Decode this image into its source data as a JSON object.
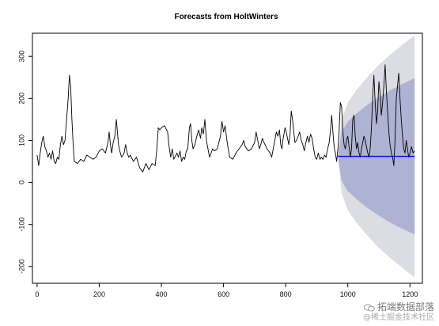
{
  "chart_data": {
    "type": "line",
    "title": "Forecasts from HoltWinters",
    "xlabel": "",
    "ylabel": "",
    "xlim": [
      -15,
      1240
    ],
    "ylim": [
      -240,
      355
    ],
    "x_ticks": [
      0,
      200,
      400,
      600,
      800,
      1000,
      1200
    ],
    "y_ticks": [
      -200,
      -100,
      0,
      100,
      200,
      300
    ],
    "grid": false,
    "legend": "none",
    "series": [
      {
        "role": "observed",
        "color": "#000000",
        "points": [
          [
            0,
            65
          ],
          [
            5,
            40
          ],
          [
            10,
            70
          ],
          [
            15,
            95
          ],
          [
            20,
            110
          ],
          [
            25,
            85
          ],
          [
            30,
            75
          ],
          [
            35,
            60
          ],
          [
            40,
            70
          ],
          [
            45,
            55
          ],
          [
            50,
            75
          ],
          [
            55,
            50
          ],
          [
            60,
            45
          ],
          [
            65,
            60
          ],
          [
            70,
            55
          ],
          [
            75,
            90
          ],
          [
            80,
            110
          ],
          [
            85,
            90
          ],
          [
            90,
            100
          ],
          [
            95,
            150
          ],
          [
            100,
            200
          ],
          [
            104,
            255
          ],
          [
            108,
            230
          ],
          [
            112,
            150
          ],
          [
            116,
            90
          ],
          [
            120,
            50
          ],
          [
            130,
            45
          ],
          [
            140,
            55
          ],
          [
            150,
            50
          ],
          [
            160,
            65
          ],
          [
            170,
            60
          ],
          [
            180,
            55
          ],
          [
            190,
            60
          ],
          [
            200,
            75
          ],
          [
            210,
            80
          ],
          [
            220,
            70
          ],
          [
            228,
            95
          ],
          [
            232,
            120
          ],
          [
            236,
            90
          ],
          [
            240,
            70
          ],
          [
            245,
            95
          ],
          [
            250,
            110
          ],
          [
            255,
            150
          ],
          [
            258,
            125
          ],
          [
            262,
            90
          ],
          [
            266,
            75
          ],
          [
            272,
            60
          ],
          [
            280,
            70
          ],
          [
            285,
            90
          ],
          [
            290,
            70
          ],
          [
            295,
            60
          ],
          [
            300,
            65
          ],
          [
            310,
            50
          ],
          [
            320,
            60
          ],
          [
            330,
            35
          ],
          [
            340,
            25
          ],
          [
            350,
            45
          ],
          [
            360,
            30
          ],
          [
            370,
            45
          ],
          [
            380,
            40
          ],
          [
            385,
            75
          ],
          [
            390,
            130
          ],
          [
            395,
            125
          ],
          [
            400,
            130
          ],
          [
            410,
            135
          ],
          [
            420,
            120
          ],
          [
            425,
            85
          ],
          [
            430,
            60
          ],
          [
            435,
            80
          ],
          [
            440,
            55
          ],
          [
            450,
            70
          ],
          [
            455,
            60
          ],
          [
            460,
            75
          ],
          [
            465,
            50
          ],
          [
            470,
            60
          ],
          [
            475,
            55
          ],
          [
            480,
            75
          ],
          [
            485,
            80
          ],
          [
            490,
            130
          ],
          [
            494,
            140
          ],
          [
            498,
            100
          ],
          [
            502,
            80
          ],
          [
            508,
            90
          ],
          [
            514,
            110
          ],
          [
            520,
            125
          ],
          [
            526,
            105
          ],
          [
            530,
            130
          ],
          [
            535,
            115
          ],
          [
            540,
            150
          ],
          [
            545,
            100
          ],
          [
            550,
            80
          ],
          [
            555,
            60
          ],
          [
            560,
            70
          ],
          [
            565,
            80
          ],
          [
            570,
            75
          ],
          [
            580,
            80
          ],
          [
            590,
            110
          ],
          [
            595,
            145
          ],
          [
            600,
            120
          ],
          [
            605,
            135
          ],
          [
            610,
            105
          ],
          [
            615,
            80
          ],
          [
            620,
            60
          ],
          [
            630,
            55
          ],
          [
            640,
            70
          ],
          [
            650,
            80
          ],
          [
            660,
            90
          ],
          [
            665,
            100
          ],
          [
            670,
            85
          ],
          [
            680,
            75
          ],
          [
            690,
            80
          ],
          [
            700,
            95
          ],
          [
            705,
            120
          ],
          [
            710,
            100
          ],
          [
            715,
            80
          ],
          [
            720,
            90
          ],
          [
            725,
            105
          ],
          [
            730,
            95
          ],
          [
            740,
            80
          ],
          [
            750,
            70
          ],
          [
            755,
            60
          ],
          [
            760,
            80
          ],
          [
            765,
            100
          ],
          [
            770,
            120
          ],
          [
            775,
            110
          ],
          [
            780,
            125
          ],
          [
            784,
            90
          ],
          [
            788,
            80
          ],
          [
            792,
            105
          ],
          [
            798,
            130
          ],
          [
            802,
            120
          ],
          [
            806,
            105
          ],
          [
            810,
            90
          ],
          [
            814,
            115
          ],
          [
            818,
            170
          ],
          [
            822,
            150
          ],
          [
            826,
            120
          ],
          [
            830,
            95
          ],
          [
            835,
            100
          ],
          [
            840,
            110
          ],
          [
            845,
            120
          ],
          [
            850,
            100
          ],
          [
            855,
            90
          ],
          [
            860,
            75
          ],
          [
            865,
            95
          ],
          [
            870,
            110
          ],
          [
            875,
            95
          ],
          [
            880,
            115
          ],
          [
            885,
            105
          ],
          [
            890,
            80
          ],
          [
            895,
            60
          ],
          [
            900,
            55
          ],
          [
            905,
            70
          ],
          [
            910,
            55
          ],
          [
            915,
            60
          ],
          [
            920,
            55
          ],
          [
            925,
            65
          ],
          [
            930,
            60
          ],
          [
            935,
            80
          ],
          [
            940,
            95
          ],
          [
            945,
            130
          ],
          [
            948,
            160
          ],
          [
            951,
            130
          ],
          [
            954,
            100
          ],
          [
            957,
            80
          ],
          [
            960,
            70
          ],
          [
            964,
            50
          ],
          [
            968,
            80
          ],
          [
            972,
            120
          ],
          [
            976,
            190
          ],
          [
            980,
            180
          ],
          [
            984,
            120
          ],
          [
            988,
            90
          ],
          [
            992,
            80
          ],
          [
            996,
            100
          ],
          [
            1000,
            110
          ],
          [
            1004,
            85
          ],
          [
            1008,
            60
          ],
          [
            1012,
            80
          ],
          [
            1016,
            150
          ],
          [
            1020,
            160
          ],
          [
            1024,
            110
          ],
          [
            1028,
            80
          ],
          [
            1032,
            95
          ],
          [
            1036,
            70
          ],
          [
            1040,
            60
          ],
          [
            1044,
            80
          ],
          [
            1048,
            95
          ],
          [
            1052,
            110
          ],
          [
            1056,
            100
          ],
          [
            1060,
            85
          ],
          [
            1064,
            70
          ],
          [
            1068,
            60
          ],
          [
            1072,
            80
          ],
          [
            1076,
            130
          ],
          [
            1080,
            200
          ],
          [
            1084,
            255
          ],
          [
            1088,
            190
          ],
          [
            1092,
            140
          ],
          [
            1096,
            170
          ],
          [
            1100,
            240
          ],
          [
            1104,
            210
          ],
          [
            1108,
            160
          ],
          [
            1112,
            190
          ],
          [
            1116,
            230
          ],
          [
            1120,
            280
          ],
          [
            1124,
            220
          ],
          [
            1128,
            170
          ],
          [
            1132,
            120
          ],
          [
            1136,
            90
          ],
          [
            1140,
            70
          ],
          [
            1144,
            60
          ],
          [
            1148,
            40
          ],
          [
            1152,
            100
          ],
          [
            1156,
            200
          ],
          [
            1160,
            230
          ],
          [
            1164,
            260
          ],
          [
            1168,
            200
          ],
          [
            1172,
            150
          ],
          [
            1176,
            110
          ],
          [
            1180,
            80
          ],
          [
            1184,
            70
          ],
          [
            1188,
            100
          ],
          [
            1192,
            80
          ],
          [
            1196,
            60
          ],
          [
            1200,
            70
          ],
          [
            1205,
            85
          ],
          [
            1210,
            70
          ],
          [
            1215,
            75
          ]
        ]
      },
      {
        "role": "forecast",
        "color": "#0000ff",
        "points": [
          [
            968,
            62
          ],
          [
            1215,
            62
          ]
        ]
      }
    ],
    "intervals": [
      {
        "role": "outer-band",
        "color": "#dcdce3",
        "x": [
          968,
          980,
          1000,
          1030,
          1060,
          1100,
          1140,
          1180,
          1215
        ],
        "upper": [
          62,
          150,
          190,
          222,
          248,
          280,
          306,
          330,
          350
        ],
        "lower": [
          62,
          -26,
          -66,
          -98,
          -124,
          -156,
          -182,
          -206,
          -226
        ]
      },
      {
        "role": "inner-band",
        "color": "#aeb3d3",
        "x": [
          968,
          980,
          1000,
          1030,
          1060,
          1100,
          1140,
          1180,
          1215
        ],
        "upper": [
          62,
          120,
          145,
          165,
          183,
          203,
          221,
          236,
          248
        ],
        "lower": [
          62,
          4,
          -21,
          -41,
          -59,
          -79,
          -97,
          -112,
          -124
        ]
      }
    ]
  },
  "watermark": {
    "line1": "拓端数据部落",
    "line2": "@稀土掘金技术社区",
    "logo": "wechat-logo-icon"
  }
}
